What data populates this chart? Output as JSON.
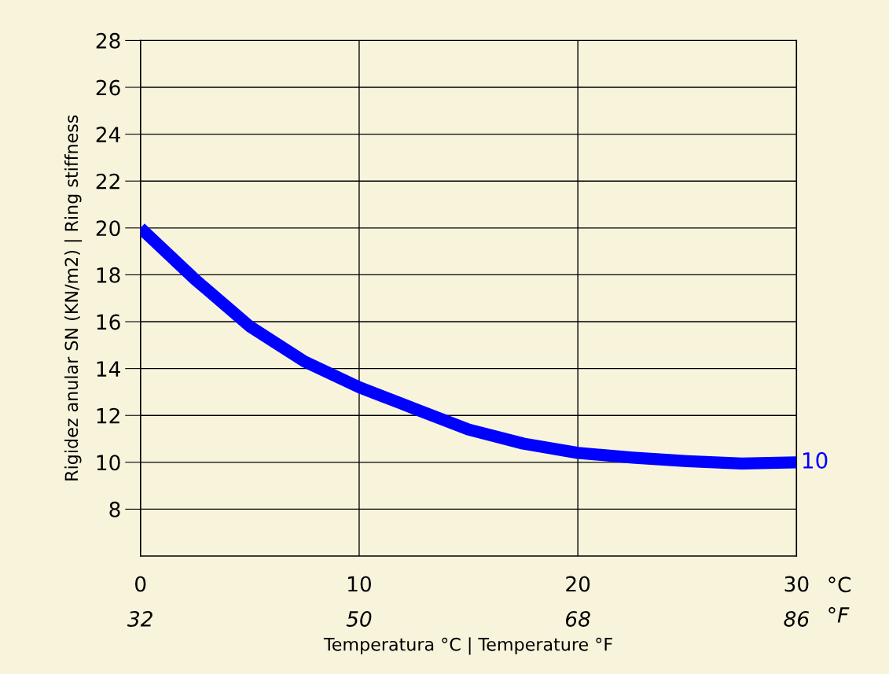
{
  "chart_data": {
    "type": "line",
    "xlabel": "Temperatura °C | Temperature °F",
    "ylabel": "Rigidez anular SN (KN/m2) | Ring stiffness",
    "x": [
      0,
      2.5,
      5,
      7.5,
      10,
      12.5,
      15,
      17.5,
      20,
      22.5,
      25,
      27.5,
      30
    ],
    "series": [
      {
        "color": "#0000ff",
        "values": [
          20,
          17.8,
          15.8,
          14.3,
          13.2,
          12.3,
          11.4,
          10.8,
          10.4,
          10.2,
          10.05,
          9.95,
          10
        ]
      }
    ],
    "xlim": [
      0,
      30
    ],
    "xticks": [
      0,
      10,
      20,
      30
    ],
    "x2lim": [
      32,
      86
    ],
    "x2ticks": [
      32,
      50,
      68,
      86
    ],
    "ylim": [
      6,
      28
    ],
    "yticks": [
      8,
      10,
      12,
      14,
      16,
      18,
      20,
      22,
      24,
      26,
      28
    ],
    "grid": true,
    "marker": "none",
    "line_style": "solid",
    "annotations": [
      {
        "text": "10",
        "x": 30,
        "y": 10
      },
      "°C",
      "°F"
    ]
  }
}
